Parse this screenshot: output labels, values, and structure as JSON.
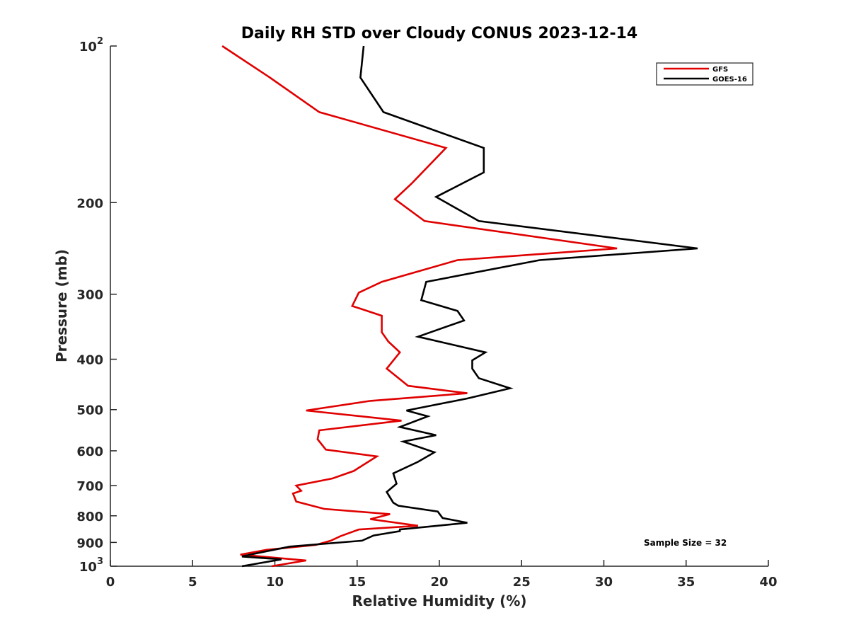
{
  "chart_data": {
    "type": "line",
    "title": "Daily RH STD over Cloudy CONUS 2023-12-14",
    "xlabel": "Relative Humidity (%)",
    "ylabel": "Pressure (mb)",
    "xlim": [
      0,
      40
    ],
    "ylim": [
      100,
      1000
    ],
    "yscale": "log",
    "y_reversed": true,
    "x_ticks": [
      {
        "value": 0,
        "label": "0"
      },
      {
        "value": 5,
        "label": "5"
      },
      {
        "value": 10,
        "label": "10"
      },
      {
        "value": 15,
        "label": "15"
      },
      {
        "value": 20,
        "label": "20"
      },
      {
        "value": 25,
        "label": "25"
      },
      {
        "value": 30,
        "label": "30"
      },
      {
        "value": 35,
        "label": "35"
      },
      {
        "value": 40,
        "label": "40"
      }
    ],
    "y_ticks": [
      {
        "value": 100,
        "base": "10",
        "exp": "2"
      },
      {
        "value": 200,
        "base": "200",
        "exp": ""
      },
      {
        "value": 300,
        "base": "300",
        "exp": ""
      },
      {
        "value": 400,
        "base": "400",
        "exp": ""
      },
      {
        "value": 500,
        "base": "500",
        "exp": ""
      },
      {
        "value": 600,
        "base": "600",
        "exp": ""
      },
      {
        "value": 700,
        "base": "700",
        "exp": ""
      },
      {
        "value": 800,
        "base": "800",
        "exp": ""
      },
      {
        "value": 900,
        "base": "900",
        "exp": ""
      },
      {
        "value": 1000,
        "base": "10",
        "exp": "3"
      }
    ],
    "grid": false,
    "legend_position": "top-right",
    "annotation": "Sample Size = 32",
    "series": [
      {
        "name": "GFS",
        "color": "#e00000",
        "points": [
          [
            6.8,
            100
          ],
          [
            9.7,
            115
          ],
          [
            12.7,
            134
          ],
          [
            20.4,
            157
          ],
          [
            18.3,
            184
          ],
          [
            17.3,
            197
          ],
          [
            19.1,
            217
          ],
          [
            30.8,
            245
          ],
          [
            21.1,
            258
          ],
          [
            16.5,
            284
          ],
          [
            15.1,
            298
          ],
          [
            14.7,
            316
          ],
          [
            16.5,
            330
          ],
          [
            16.5,
            355
          ],
          [
            16.9,
            370
          ],
          [
            17.6,
            388
          ],
          [
            16.8,
            417
          ],
          [
            18.1,
            450
          ],
          [
            21.7,
            465
          ],
          [
            15.8,
            481
          ],
          [
            11.9,
            502
          ],
          [
            17.7,
            525
          ],
          [
            12.7,
            548
          ],
          [
            12.6,
            570
          ],
          [
            13.1,
            597
          ],
          [
            16.2,
            615
          ],
          [
            15.3,
            641
          ],
          [
            14.8,
            656
          ],
          [
            13.5,
            678
          ],
          [
            11.3,
            700
          ],
          [
            11.6,
            716
          ],
          [
            11.1,
            725
          ],
          [
            11.3,
            751
          ],
          [
            13.0,
            776
          ],
          [
            17.0,
            794
          ],
          [
            15.8,
            812
          ],
          [
            18.7,
            836
          ],
          [
            15.1,
            850
          ],
          [
            14.0,
            875
          ],
          [
            13.4,
            893
          ],
          [
            12.5,
            910
          ],
          [
            9.5,
            930
          ],
          [
            7.9,
            950
          ],
          [
            11.9,
            975
          ],
          [
            9.8,
            1000
          ]
        ]
      },
      {
        "name": "GOES-16",
        "color": "#000000",
        "points": [
          [
            15.4,
            100
          ],
          [
            15.2,
            115
          ],
          [
            16.6,
            134
          ],
          [
            22.7,
            157
          ],
          [
            22.7,
            175
          ],
          [
            19.8,
            195
          ],
          [
            22.4,
            217
          ],
          [
            35.7,
            245
          ],
          [
            26.1,
            258
          ],
          [
            19.2,
            284
          ],
          [
            18.9,
            308
          ],
          [
            21.1,
            323
          ],
          [
            21.5,
            337
          ],
          [
            18.7,
            362
          ],
          [
            22.8,
            388
          ],
          [
            22.0,
            402
          ],
          [
            22.0,
            417
          ],
          [
            22.4,
            435
          ],
          [
            24.3,
            455
          ],
          [
            21.7,
            476
          ],
          [
            18.0,
            502
          ],
          [
            19.3,
            515
          ],
          [
            17.6,
            540
          ],
          [
            19.8,
            560
          ],
          [
            17.8,
            576
          ],
          [
            19.7,
            604
          ],
          [
            18.7,
            630
          ],
          [
            17.2,
            663
          ],
          [
            17.4,
            694
          ],
          [
            16.8,
            720
          ],
          [
            17.2,
            755
          ],
          [
            17.5,
            765
          ],
          [
            19.9,
            785
          ],
          [
            20.2,
            808
          ],
          [
            21.7,
            825
          ],
          [
            17.6,
            850
          ],
          [
            17.6,
            856
          ],
          [
            16.0,
            873
          ],
          [
            15.3,
            893
          ],
          [
            10.9,
            917
          ],
          [
            8.5,
            950
          ],
          [
            8.0,
            958
          ],
          [
            10.4,
            970
          ],
          [
            8.0,
            1000
          ]
        ]
      }
    ]
  }
}
